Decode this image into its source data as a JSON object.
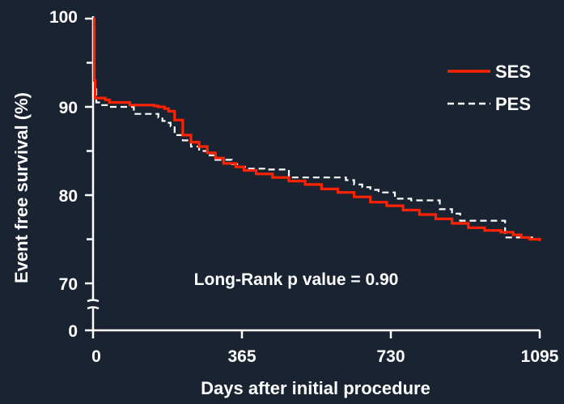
{
  "colors": {
    "background": "#1a2332",
    "axis": "#ffffff",
    "ses": "#ff2200",
    "pes": "#ffffff"
  },
  "chart_data": {
    "type": "line",
    "xlabel": "Days after initial procedure",
    "ylabel": "Event free survival (%)",
    "x_ticks": [
      0,
      365,
      730,
      1095
    ],
    "x_tick_labels": [
      "0",
      "365",
      "730",
      "1095"
    ],
    "xlim": [
      0,
      1095
    ],
    "y_ticks": [
      70,
      80,
      90,
      100
    ],
    "y_tick_labels": [
      "70",
      "80",
      "90",
      "100"
    ],
    "y_break": {
      "low_label": "0",
      "low_value": 0
    },
    "ylim": [
      68,
      100
    ],
    "legend": {
      "placement": "top-right"
    },
    "annotation": "Long-Rank p value = 0.90",
    "series": [
      {
        "name": "SES",
        "style": "solid",
        "color": "#ff2200",
        "x": [
          0,
          3,
          5,
          15,
          30,
          40,
          80,
          90,
          150,
          160,
          175,
          185,
          200,
          220,
          240,
          260,
          280,
          300,
          320,
          350,
          370,
          400,
          440,
          480,
          520,
          560,
          600,
          640,
          680,
          720,
          760,
          800,
          840,
          880,
          920,
          960,
          1000,
          1030,
          1050,
          1070,
          1095
        ],
        "y": [
          100,
          93,
          91,
          91,
          90.8,
          90.5,
          90.5,
          90.2,
          90.1,
          90,
          89.8,
          89.5,
          88.5,
          86.8,
          86,
          85.5,
          84.8,
          84.2,
          83.6,
          83.2,
          82.8,
          82.4,
          82,
          81.6,
          81.2,
          80.7,
          80.3,
          79.8,
          79.2,
          78.8,
          78.3,
          77.8,
          77.3,
          76.8,
          76.3,
          76,
          75.8,
          75.5,
          75.2,
          75,
          74.8
        ]
      },
      {
        "name": "PES",
        "style": "dashed",
        "color": "#ffffff",
        "x": [
          0,
          3,
          8,
          20,
          40,
          90,
          100,
          160,
          170,
          180,
          190,
          200,
          220,
          240,
          260,
          280,
          300,
          340,
          360,
          380,
          420,
          470,
          480,
          600,
          620,
          640,
          660,
          680,
          700,
          720,
          740,
          780,
          800,
          840,
          850,
          880,
          900,
          1000,
          1010,
          1040,
          1060,
          1080,
          1095
        ],
        "y": [
          100,
          92,
          90.5,
          90.2,
          90,
          90,
          89.2,
          88.8,
          88.4,
          88.2,
          87.8,
          86.8,
          86.2,
          85.5,
          85,
          84.5,
          84,
          83.5,
          83.2,
          83,
          82.9,
          82.9,
          82,
          82,
          81.7,
          81.2,
          80.9,
          80.6,
          80.3,
          80.3,
          79.6,
          79.4,
          79.4,
          79.4,
          78.4,
          77.9,
          77.1,
          77.1,
          75.2,
          75.2,
          75.2,
          75,
          74.9
        ]
      }
    ]
  }
}
